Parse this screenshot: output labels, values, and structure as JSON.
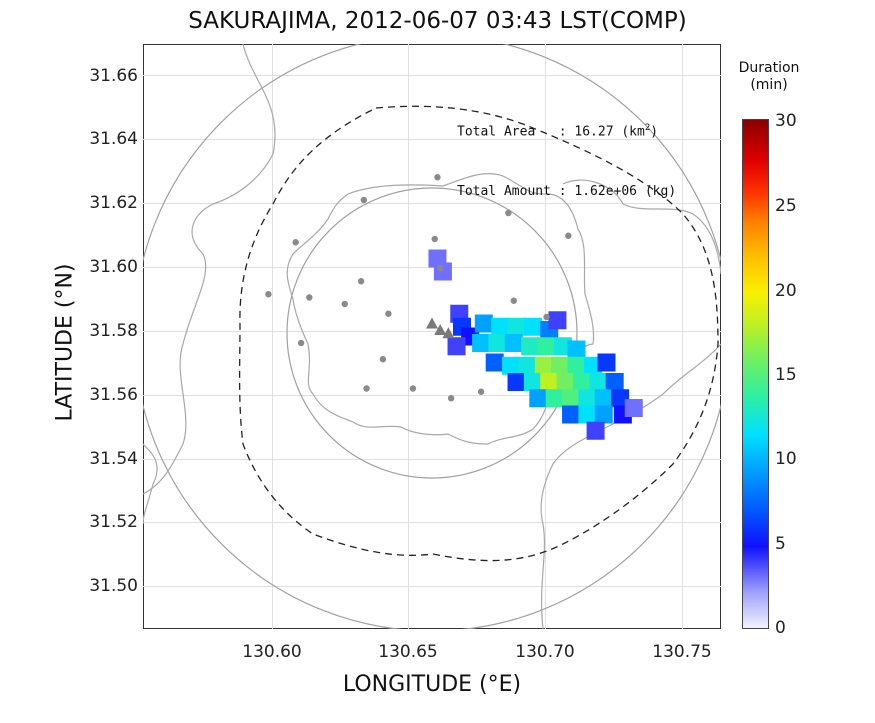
{
  "title": "SAKURAJIMA, 2012-06-07 03:43 LST(COMP)",
  "axes": {
    "xlabel": "LONGITUDE (°E)",
    "ylabel": "LATITUDE (°N)",
    "xticks": [
      "130.60",
      "130.65",
      "130.70",
      "130.75"
    ],
    "yticks": [
      "31.66",
      "31.64",
      "31.62",
      "31.60",
      "31.58",
      "31.56",
      "31.54",
      "31.52",
      "31.50"
    ]
  },
  "stats": {
    "area_label": "Total Area   : 16.27 (km",
    "area_sup": "2",
    "area_close": ")",
    "amount_label": "Total Amount : 1.62e+06 (kg)"
  },
  "colorbar": {
    "title_line1": "Duration",
    "title_line2": "(min)",
    "ticks": [
      "30",
      "25",
      "20",
      "15",
      "10",
      "5",
      "0"
    ]
  },
  "chart_data": {
    "type": "heatmap",
    "title": "SAKURAJIMA, 2012-06-07 03:43 LST(COMP)",
    "xlabel": "LONGITUDE (°E)",
    "ylabel": "LATITUDE (°N)",
    "xlim": [
      130.552,
      130.764
    ],
    "ylim": [
      31.487,
      31.667
    ],
    "colorbar_range": [
      0,
      30
    ],
    "colorbar_label": "Duration (min)",
    "grid": true,
    "vents": [
      {
        "lon": 130.658,
        "lat": 31.581
      },
      {
        "lon": 130.661,
        "lat": 31.579
      },
      {
        "lon": 130.664,
        "lat": 31.578
      }
    ],
    "stations": [
      {
        "lon": 130.66,
        "lat": 31.626
      },
      {
        "lon": 130.686,
        "lat": 31.615
      },
      {
        "lon": 130.633,
        "lat": 31.619
      },
      {
        "lon": 130.608,
        "lat": 31.606
      },
      {
        "lon": 130.659,
        "lat": 31.607
      },
      {
        "lon": 130.708,
        "lat": 31.608
      },
      {
        "lon": 130.661,
        "lat": 31.598
      },
      {
        "lon": 130.598,
        "lat": 31.59
      },
      {
        "lon": 130.613,
        "lat": 31.589
      },
      {
        "lon": 130.632,
        "lat": 31.594
      },
      {
        "lon": 130.626,
        "lat": 31.587
      },
      {
        "lon": 130.642,
        "lat": 31.584
      },
      {
        "lon": 130.688,
        "lat": 31.588
      },
      {
        "lon": 130.7,
        "lat": 31.583
      },
      {
        "lon": 130.61,
        "lat": 31.575
      },
      {
        "lon": 130.64,
        "lat": 31.57
      },
      {
        "lon": 130.634,
        "lat": 31.561
      },
      {
        "lon": 130.651,
        "lat": 31.561
      },
      {
        "lon": 130.665,
        "lat": 31.558
      },
      {
        "lon": 130.676,
        "lat": 31.56
      }
    ],
    "ash_cells": [
      {
        "lon": 130.66,
        "lat": 31.601,
        "v": 3
      },
      {
        "lon": 130.662,
        "lat": 31.597,
        "v": 3
      },
      {
        "lon": 130.668,
        "lat": 31.584,
        "v": 4
      },
      {
        "lon": 130.669,
        "lat": 31.58,
        "v": 6
      },
      {
        "lon": 130.672,
        "lat": 31.577,
        "v": 5
      },
      {
        "lon": 130.667,
        "lat": 31.574,
        "v": 4
      },
      {
        "lon": 130.677,
        "lat": 31.581,
        "v": 9
      },
      {
        "lon": 130.683,
        "lat": 31.58,
        "v": 11
      },
      {
        "lon": 130.689,
        "lat": 31.58,
        "v": 12
      },
      {
        "lon": 130.695,
        "lat": 31.58,
        "v": 11
      },
      {
        "lon": 130.701,
        "lat": 31.579,
        "v": 8
      },
      {
        "lon": 130.676,
        "lat": 31.575,
        "v": 10
      },
      {
        "lon": 130.682,
        "lat": 31.575,
        "v": 12
      },
      {
        "lon": 130.688,
        "lat": 31.575,
        "v": 10
      },
      {
        "lon": 130.694,
        "lat": 31.574,
        "v": 13
      },
      {
        "lon": 130.7,
        "lat": 31.574,
        "v": 14
      },
      {
        "lon": 130.706,
        "lat": 31.574,
        "v": 12
      },
      {
        "lon": 130.711,
        "lat": 31.573,
        "v": 10
      },
      {
        "lon": 130.681,
        "lat": 31.569,
        "v": 7
      },
      {
        "lon": 130.687,
        "lat": 31.568,
        "v": 11
      },
      {
        "lon": 130.693,
        "lat": 31.568,
        "v": 12
      },
      {
        "lon": 130.699,
        "lat": 31.568,
        "v": 17
      },
      {
        "lon": 130.705,
        "lat": 31.568,
        "v": 16
      },
      {
        "lon": 130.711,
        "lat": 31.568,
        "v": 14
      },
      {
        "lon": 130.717,
        "lat": 31.568,
        "v": 11
      },
      {
        "lon": 130.722,
        "lat": 31.569,
        "v": 6
      },
      {
        "lon": 130.689,
        "lat": 31.563,
        "v": 6
      },
      {
        "lon": 130.695,
        "lat": 31.563,
        "v": 12
      },
      {
        "lon": 130.701,
        "lat": 31.563,
        "v": 18
      },
      {
        "lon": 130.707,
        "lat": 31.563,
        "v": 16
      },
      {
        "lon": 130.713,
        "lat": 31.563,
        "v": 14
      },
      {
        "lon": 130.719,
        "lat": 31.563,
        "v": 12
      },
      {
        "lon": 130.725,
        "lat": 31.563,
        "v": 7
      },
      {
        "lon": 130.697,
        "lat": 31.558,
        "v": 9
      },
      {
        "lon": 130.703,
        "lat": 31.558,
        "v": 14
      },
      {
        "lon": 130.709,
        "lat": 31.558,
        "v": 15
      },
      {
        "lon": 130.715,
        "lat": 31.558,
        "v": 12
      },
      {
        "lon": 130.721,
        "lat": 31.558,
        "v": 10
      },
      {
        "lon": 130.727,
        "lat": 31.558,
        "v": 6
      },
      {
        "lon": 130.709,
        "lat": 31.553,
        "v": 7
      },
      {
        "lon": 130.715,
        "lat": 31.553,
        "v": 11
      },
      {
        "lon": 130.721,
        "lat": 31.553,
        "v": 9
      },
      {
        "lon": 130.728,
        "lat": 31.553,
        "v": 5
      },
      {
        "lon": 130.718,
        "lat": 31.548,
        "v": 4
      },
      {
        "lon": 130.732,
        "lat": 31.555,
        "v": 3
      },
      {
        "lon": 130.704,
        "lat": 31.582,
        "v": 4
      }
    ]
  }
}
